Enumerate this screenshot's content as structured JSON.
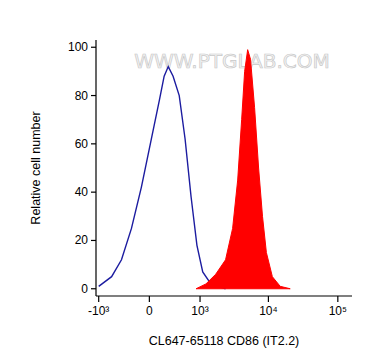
{
  "chart_data": {
    "type": "line",
    "watermark": "WWW.PTGLAB.COM",
    "x_label": "CL647-65118 CD86 (IT2.2)",
    "y_label": "Relative cell number",
    "xlim": [
      -1100,
      160000
    ],
    "ylim": [
      -3,
      103
    ],
    "xticks": [
      {
        "value": -1000,
        "label": "-10³"
      },
      0,
      {
        "value": 1000,
        "label": "10³"
      },
      {
        "value": 10000,
        "label": "10⁴"
      },
      {
        "value": 100000,
        "label": "10⁵"
      }
    ],
    "yticks": [
      0,
      20,
      40,
      60,
      80,
      100
    ],
    "grid": false,
    "series": [
      {
        "type": "line",
        "color": "#1c1ca0",
        "x": [
          -1000,
          -620,
          -410,
          -243,
          -104,
          25,
          130,
          197,
          258,
          336,
          448,
          572,
          722,
          895,
          1100,
          1460,
          2400
        ],
        "values": [
          1,
          5,
          12,
          25,
          42,
          62,
          78,
          88,
          92,
          88,
          80,
          62,
          38,
          18,
          7,
          2,
          0
        ]
      },
      {
        "type": "area",
        "color": "#ff0000",
        "x": [
          868,
          1230,
          1720,
          2400,
          3040,
          3600,
          4110,
          4540,
          5020,
          5520,
          6320,
          7220,
          8220,
          9350,
          11400,
          14800,
          20600
        ],
        "values": [
          0,
          2,
          6,
          12,
          25,
          45,
          70,
          90,
          99,
          95,
          75,
          50,
          30,
          15,
          5,
          1,
          0
        ]
      }
    ]
  }
}
